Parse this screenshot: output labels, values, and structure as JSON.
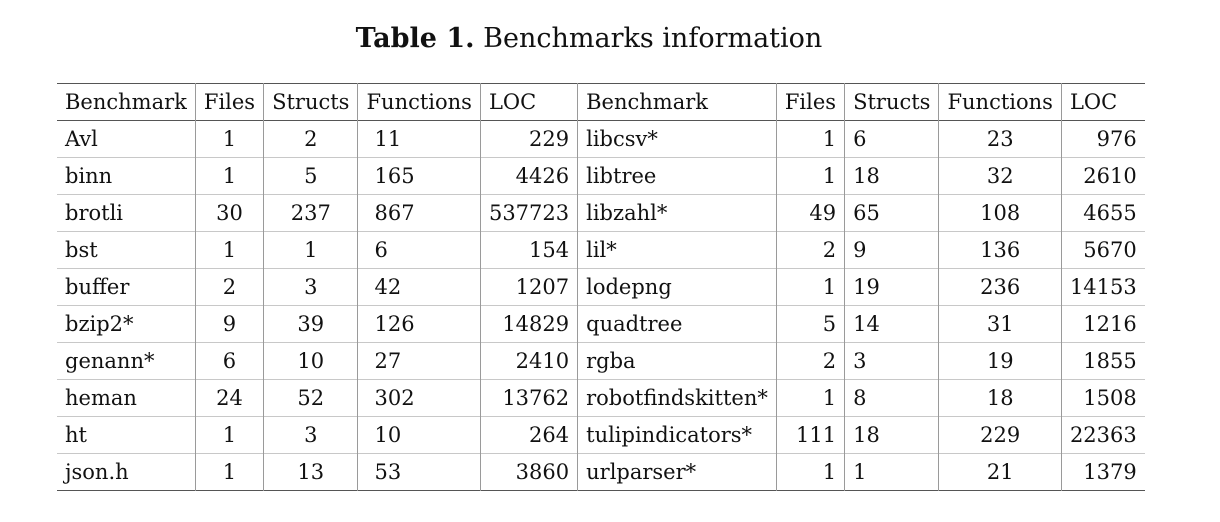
{
  "caption": {
    "label": "Table 1.",
    "text": "Benchmarks information"
  },
  "headers": [
    "Benchmark",
    "Files",
    "Structs",
    "Functions",
    "LOC",
    "Benchmark",
    "Files",
    "Structs",
    "Functions",
    "LOC"
  ],
  "rows": [
    [
      "Avl",
      "1",
      "2",
      "11",
      "229",
      "libcsv*",
      "1",
      "6",
      "23",
      "976"
    ],
    [
      "binn",
      "1",
      "5",
      "165",
      "4426",
      "libtree",
      "1",
      "18",
      "32",
      "2610"
    ],
    [
      "brotli",
      "30",
      "237",
      "867",
      "537723",
      "libzahl*",
      "49",
      "65",
      "108",
      "4655"
    ],
    [
      "bst",
      "1",
      "1",
      "6",
      "154",
      "lil*",
      "2",
      "9",
      "136",
      "5670"
    ],
    [
      "buffer",
      "2",
      "3",
      "42",
      "1207",
      "lodepng",
      "1",
      "19",
      "236",
      "14153"
    ],
    [
      "bzip2*",
      "9",
      "39",
      "126",
      "14829",
      "quadtree",
      "5",
      "14",
      "31",
      "1216"
    ],
    [
      "genann*",
      "6",
      "10",
      "27",
      "2410",
      "rgba",
      "2",
      "3",
      "19",
      "1855"
    ],
    [
      "heman",
      "24",
      "52",
      "302",
      "13762",
      "robotfindskitten*",
      "1",
      "8",
      "18",
      "1508"
    ],
    [
      "ht",
      "1",
      "3",
      "10",
      "264",
      "tulipindicators*",
      "111",
      "18",
      "229",
      "22363"
    ],
    [
      "json.h",
      "1",
      "13",
      "53",
      "3860",
      "urlparser*",
      "1",
      "1",
      "21",
      "1379"
    ]
  ]
}
